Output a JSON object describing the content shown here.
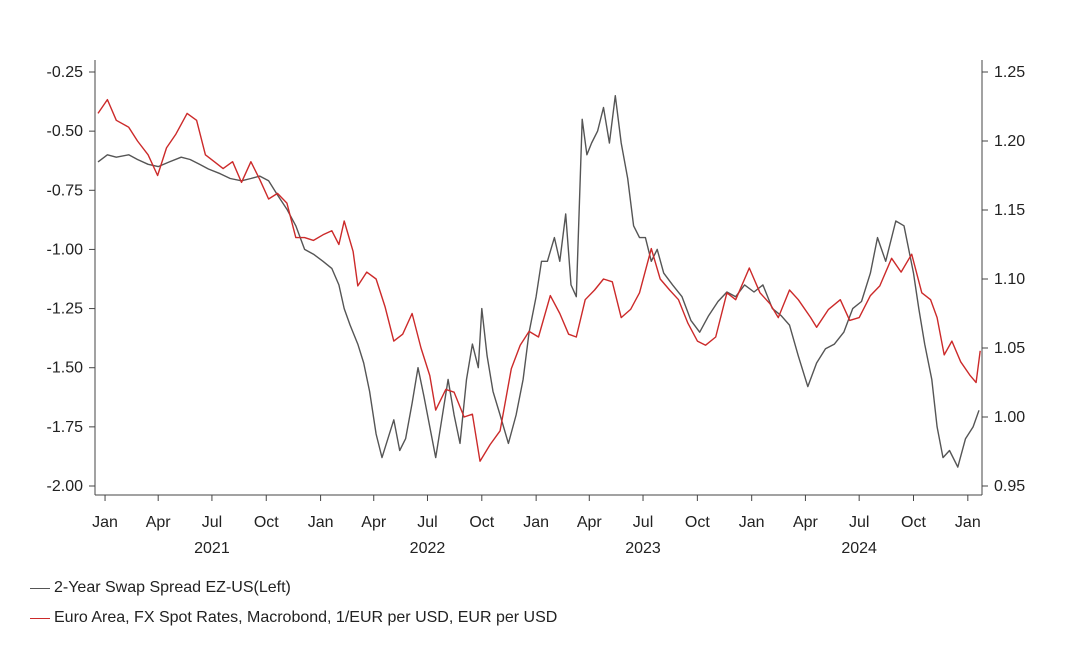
{
  "chart_data": {
    "type": "line",
    "title": "",
    "x_range": [
      "2020-12-15",
      "2025-01-25"
    ],
    "y_left": {
      "min": -2.0,
      "max": -0.25,
      "ticks": [
        "-0.25",
        "-0.50",
        "-0.75",
        "-1.00",
        "-1.25",
        "-1.50",
        "-1.75",
        "-2.00"
      ]
    },
    "y_right": {
      "min": 0.95,
      "max": 1.25,
      "ticks": [
        "1.25",
        "1.20",
        "1.15",
        "1.10",
        "1.05",
        "1.00",
        "0.95"
      ]
    },
    "x_ticks": [
      {
        "date": "2021-01-01",
        "label": "Jan"
      },
      {
        "date": "2021-04-01",
        "label": "Apr"
      },
      {
        "date": "2021-07-01",
        "label": "Jul"
      },
      {
        "date": "2021-10-01",
        "label": "Oct"
      },
      {
        "date": "2022-01-01",
        "label": "Jan"
      },
      {
        "date": "2022-04-01",
        "label": "Apr"
      },
      {
        "date": "2022-07-01",
        "label": "Jul"
      },
      {
        "date": "2022-10-01",
        "label": "Oct"
      },
      {
        "date": "2023-01-01",
        "label": "Jan"
      },
      {
        "date": "2023-04-01",
        "label": "Apr"
      },
      {
        "date": "2023-07-01",
        "label": "Jul"
      },
      {
        "date": "2023-10-01",
        "label": "Oct"
      },
      {
        "date": "2024-01-01",
        "label": "Jan"
      },
      {
        "date": "2024-04-01",
        "label": "Apr"
      },
      {
        "date": "2024-07-01",
        "label": "Jul"
      },
      {
        "date": "2024-10-01",
        "label": "Oct"
      },
      {
        "date": "2025-01-01",
        "label": "Jan"
      }
    ],
    "year_labels": [
      {
        "date": "2021-07-01",
        "label": "2021"
      },
      {
        "date": "2022-07-01",
        "label": "2022"
      },
      {
        "date": "2023-07-01",
        "label": "2023"
      },
      {
        "date": "2024-07-01",
        "label": "2024"
      }
    ],
    "grid": false,
    "legend_position": "bottom-left",
    "series": [
      {
        "name": "2-Year Swap Spread EZ-US(Left)",
        "axis": "left",
        "color": "#555555",
        "points": [
          [
            "2020-12-20",
            -0.63
          ],
          [
            "2021-01-05",
            -0.6
          ],
          [
            "2021-01-20",
            -0.61
          ],
          [
            "2021-02-10",
            -0.6
          ],
          [
            "2021-02-25",
            -0.62
          ],
          [
            "2021-03-15",
            -0.64
          ],
          [
            "2021-04-01",
            -0.65
          ],
          [
            "2021-04-20",
            -0.63
          ],
          [
            "2021-05-10",
            -0.61
          ],
          [
            "2021-05-25",
            -0.62
          ],
          [
            "2021-06-10",
            -0.64
          ],
          [
            "2021-06-25",
            -0.66
          ],
          [
            "2021-07-15",
            -0.68
          ],
          [
            "2021-08-01",
            -0.7
          ],
          [
            "2021-08-20",
            -0.71
          ],
          [
            "2021-09-05",
            -0.7
          ],
          [
            "2021-09-20",
            -0.69
          ],
          [
            "2021-10-05",
            -0.71
          ],
          [
            "2021-10-20",
            -0.77
          ],
          [
            "2021-11-05",
            -0.83
          ],
          [
            "2021-11-20",
            -0.9
          ],
          [
            "2021-12-05",
            -1.0
          ],
          [
            "2021-12-20",
            -1.02
          ],
          [
            "2022-01-05",
            -1.05
          ],
          [
            "2022-01-20",
            -1.08
          ],
          [
            "2022-02-01",
            -1.15
          ],
          [
            "2022-02-10",
            -1.25
          ],
          [
            "2022-02-20",
            -1.32
          ],
          [
            "2022-03-05",
            -1.4
          ],
          [
            "2022-03-15",
            -1.48
          ],
          [
            "2022-03-25",
            -1.6
          ],
          [
            "2022-04-05",
            -1.78
          ],
          [
            "2022-04-15",
            -1.88
          ],
          [
            "2022-04-25",
            -1.8
          ],
          [
            "2022-05-05",
            -1.72
          ],
          [
            "2022-05-15",
            -1.85
          ],
          [
            "2022-05-25",
            -1.8
          ],
          [
            "2022-06-05",
            -1.65
          ],
          [
            "2022-06-15",
            -1.5
          ],
          [
            "2022-06-25",
            -1.62
          ],
          [
            "2022-07-05",
            -1.75
          ],
          [
            "2022-07-15",
            -1.88
          ],
          [
            "2022-07-25",
            -1.72
          ],
          [
            "2022-08-05",
            -1.55
          ],
          [
            "2022-08-15",
            -1.7
          ],
          [
            "2022-08-25",
            -1.82
          ],
          [
            "2022-09-05",
            -1.55
          ],
          [
            "2022-09-15",
            -1.4
          ],
          [
            "2022-09-25",
            -1.5
          ],
          [
            "2022-10-01",
            -1.25
          ],
          [
            "2022-10-10",
            -1.45
          ],
          [
            "2022-10-20",
            -1.6
          ],
          [
            "2022-11-01",
            -1.7
          ],
          [
            "2022-11-15",
            -1.82
          ],
          [
            "2022-11-28",
            -1.7
          ],
          [
            "2022-12-10",
            -1.55
          ],
          [
            "2022-12-20",
            -1.35
          ],
          [
            "2023-01-01",
            -1.2
          ],
          [
            "2023-01-10",
            -1.05
          ],
          [
            "2023-01-20",
            -1.05
          ],
          [
            "2023-02-01",
            -0.95
          ],
          [
            "2023-02-10",
            -1.05
          ],
          [
            "2023-02-20",
            -0.85
          ],
          [
            "2023-03-01",
            -1.15
          ],
          [
            "2023-03-10",
            -1.2
          ],
          [
            "2023-03-20",
            -0.45
          ],
          [
            "2023-03-28",
            -0.6
          ],
          [
            "2023-04-05",
            -0.55
          ],
          [
            "2023-04-15",
            -0.5
          ],
          [
            "2023-04-25",
            -0.4
          ],
          [
            "2023-05-05",
            -0.55
          ],
          [
            "2023-05-15",
            -0.35
          ],
          [
            "2023-05-25",
            -0.55
          ],
          [
            "2023-06-05",
            -0.7
          ],
          [
            "2023-06-15",
            -0.9
          ],
          [
            "2023-06-25",
            -0.95
          ],
          [
            "2023-07-05",
            -0.95
          ],
          [
            "2023-07-15",
            -1.05
          ],
          [
            "2023-07-25",
            -1.0
          ],
          [
            "2023-08-05",
            -1.1
          ],
          [
            "2023-08-20",
            -1.15
          ],
          [
            "2023-09-05",
            -1.2
          ],
          [
            "2023-09-20",
            -1.3
          ],
          [
            "2023-10-05",
            -1.35
          ],
          [
            "2023-10-20",
            -1.28
          ],
          [
            "2023-11-05",
            -1.22
          ],
          [
            "2023-11-20",
            -1.18
          ],
          [
            "2023-12-05",
            -1.2
          ],
          [
            "2023-12-20",
            -1.15
          ],
          [
            "2024-01-05",
            -1.18
          ],
          [
            "2024-01-20",
            -1.15
          ],
          [
            "2024-02-05",
            -1.25
          ],
          [
            "2024-02-20",
            -1.28
          ],
          [
            "2024-03-05",
            -1.32
          ],
          [
            "2024-03-20",
            -1.45
          ],
          [
            "2024-04-05",
            -1.58
          ],
          [
            "2024-04-20",
            -1.48
          ],
          [
            "2024-05-05",
            -1.42
          ],
          [
            "2024-05-20",
            -1.4
          ],
          [
            "2024-06-05",
            -1.35
          ],
          [
            "2024-06-20",
            -1.25
          ],
          [
            "2024-07-05",
            -1.22
          ],
          [
            "2024-07-20",
            -1.1
          ],
          [
            "2024-08-01",
            -0.95
          ],
          [
            "2024-08-15",
            -1.05
          ],
          [
            "2024-09-01",
            -0.88
          ],
          [
            "2024-09-15",
            -0.9
          ],
          [
            "2024-10-01",
            -1.1
          ],
          [
            "2024-10-10",
            -1.25
          ],
          [
            "2024-10-20",
            -1.4
          ],
          [
            "2024-11-01",
            -1.55
          ],
          [
            "2024-11-10",
            -1.75
          ],
          [
            "2024-11-20",
            -1.88
          ],
          [
            "2024-12-01",
            -1.85
          ],
          [
            "2024-12-15",
            -1.92
          ],
          [
            "2024-12-28",
            -1.8
          ],
          [
            "2025-01-10",
            -1.75
          ],
          [
            "2025-01-20",
            -1.68
          ]
        ]
      },
      {
        "name": "Euro Area, FX Spot Rates, Macrobond, 1/EUR per USD, EUR per USD",
        "axis": "right",
        "color": "#cc2a2a",
        "points": [
          [
            "2020-12-20",
            1.22
          ],
          [
            "2021-01-05",
            1.23
          ],
          [
            "2021-01-20",
            1.215
          ],
          [
            "2021-02-10",
            1.21
          ],
          [
            "2021-02-25",
            1.2
          ],
          [
            "2021-03-15",
            1.19
          ],
          [
            "2021-03-31",
            1.175
          ],
          [
            "2021-04-15",
            1.195
          ],
          [
            "2021-05-01",
            1.205
          ],
          [
            "2021-05-20",
            1.22
          ],
          [
            "2021-06-05",
            1.215
          ],
          [
            "2021-06-20",
            1.19
          ],
          [
            "2021-07-05",
            1.185
          ],
          [
            "2021-07-20",
            1.18
          ],
          [
            "2021-08-05",
            1.185
          ],
          [
            "2021-08-20",
            1.17
          ],
          [
            "2021-09-05",
            1.185
          ],
          [
            "2021-09-20",
            1.172
          ],
          [
            "2021-10-05",
            1.158
          ],
          [
            "2021-10-20",
            1.162
          ],
          [
            "2021-11-05",
            1.155
          ],
          [
            "2021-11-20",
            1.13
          ],
          [
            "2021-12-05",
            1.13
          ],
          [
            "2021-12-20",
            1.128
          ],
          [
            "2022-01-05",
            1.132
          ],
          [
            "2022-01-20",
            1.135
          ],
          [
            "2022-02-01",
            1.125
          ],
          [
            "2022-02-10",
            1.142
          ],
          [
            "2022-02-25",
            1.12
          ],
          [
            "2022-03-05",
            1.095
          ],
          [
            "2022-03-20",
            1.105
          ],
          [
            "2022-04-05",
            1.1
          ],
          [
            "2022-04-20",
            1.08
          ],
          [
            "2022-05-05",
            1.055
          ],
          [
            "2022-05-20",
            1.06
          ],
          [
            "2022-06-05",
            1.075
          ],
          [
            "2022-06-20",
            1.05
          ],
          [
            "2022-07-05",
            1.03
          ],
          [
            "2022-07-15",
            1.005
          ],
          [
            "2022-08-01",
            1.02
          ],
          [
            "2022-08-15",
            1.018
          ],
          [
            "2022-09-01",
            1.0
          ],
          [
            "2022-09-15",
            1.002
          ],
          [
            "2022-09-28",
            0.968
          ],
          [
            "2022-10-15",
            0.98
          ],
          [
            "2022-11-01",
            0.99
          ],
          [
            "2022-11-20",
            1.035
          ],
          [
            "2022-12-05",
            1.052
          ],
          [
            "2022-12-20",
            1.062
          ],
          [
            "2023-01-05",
            1.058
          ],
          [
            "2023-01-25",
            1.088
          ],
          [
            "2023-02-10",
            1.075
          ],
          [
            "2023-02-25",
            1.06
          ],
          [
            "2023-03-10",
            1.058
          ],
          [
            "2023-03-25",
            1.085
          ],
          [
            "2023-04-10",
            1.092
          ],
          [
            "2023-04-25",
            1.1
          ],
          [
            "2023-05-10",
            1.098
          ],
          [
            "2023-05-25",
            1.072
          ],
          [
            "2023-06-10",
            1.078
          ],
          [
            "2023-06-25",
            1.09
          ],
          [
            "2023-07-15",
            1.122
          ],
          [
            "2023-07-30",
            1.1
          ],
          [
            "2023-08-15",
            1.092
          ],
          [
            "2023-08-30",
            1.085
          ],
          [
            "2023-09-15",
            1.068
          ],
          [
            "2023-10-01",
            1.055
          ],
          [
            "2023-10-15",
            1.052
          ],
          [
            "2023-11-01",
            1.058
          ],
          [
            "2023-11-20",
            1.09
          ],
          [
            "2023-12-05",
            1.085
          ],
          [
            "2023-12-28",
            1.108
          ],
          [
            "2024-01-15",
            1.09
          ],
          [
            "2024-02-01",
            1.082
          ],
          [
            "2024-02-15",
            1.072
          ],
          [
            "2024-03-05",
            1.092
          ],
          [
            "2024-03-20",
            1.085
          ],
          [
            "2024-04-10",
            1.072
          ],
          [
            "2024-04-20",
            1.065
          ],
          [
            "2024-05-10",
            1.078
          ],
          [
            "2024-05-30",
            1.085
          ],
          [
            "2024-06-15",
            1.07
          ],
          [
            "2024-07-01",
            1.072
          ],
          [
            "2024-07-20",
            1.088
          ],
          [
            "2024-08-05",
            1.095
          ],
          [
            "2024-08-25",
            1.115
          ],
          [
            "2024-09-10",
            1.105
          ],
          [
            "2024-09-28",
            1.118
          ],
          [
            "2024-10-15",
            1.09
          ],
          [
            "2024-10-30",
            1.085
          ],
          [
            "2024-11-10",
            1.072
          ],
          [
            "2024-11-22",
            1.045
          ],
          [
            "2024-12-05",
            1.055
          ],
          [
            "2024-12-20",
            1.04
          ],
          [
            "2025-01-05",
            1.03
          ],
          [
            "2025-01-15",
            1.025
          ],
          [
            "2025-01-22",
            1.048
          ]
        ]
      }
    ]
  },
  "legend": {
    "items": [
      {
        "label": "2-Year Swap Spread EZ-US(Left)",
        "color": "#555555"
      },
      {
        "label": "Euro Area, FX Spot Rates, Macrobond, 1/EUR per USD, EUR per USD",
        "color": "#cc2a2a"
      }
    ]
  }
}
